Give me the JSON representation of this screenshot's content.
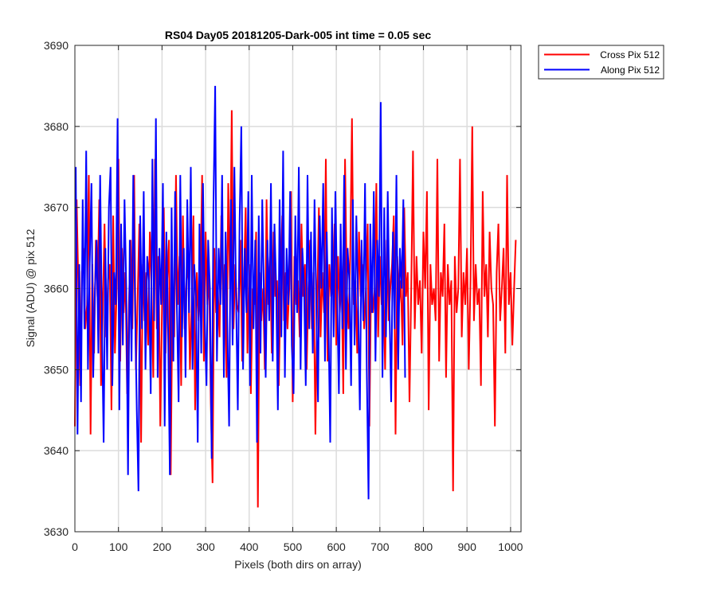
{
  "chart_data": {
    "type": "line",
    "title": "RS04 Day05 20181205-Dark-005 int time = 0.05 sec",
    "xlabel": "Pixels (both dirs on array)",
    "ylabel": "Signal (ADU) @ pix 512",
    "xlim": [
      0,
      1024
    ],
    "ylim": [
      3630,
      3690
    ],
    "xticks": [
      0,
      100,
      200,
      300,
      400,
      500,
      600,
      700,
      800,
      900,
      1000
    ],
    "yticks": [
      3630,
      3640,
      3650,
      3660,
      3670,
      3680,
      3690
    ],
    "grid": true,
    "legend_position": "outside top-right",
    "series": [
      {
        "name": "Cross Pix 512",
        "color": "#ff0000",
        "x_start": 0,
        "x_step": 4,
        "values": [
          3643,
          3671,
          3660,
          3648,
          3662,
          3665,
          3655,
          3658,
          3674,
          3642,
          3663,
          3652,
          3666,
          3659,
          3671,
          3648,
          3657,
          3668,
          3654,
          3661,
          3663,
          3645,
          3669,
          3652,
          3660,
          3676,
          3651,
          3665,
          3657,
          3662,
          3647,
          3658,
          3666,
          3655,
          3674,
          3650,
          3659,
          3668,
          3641,
          3663,
          3656,
          3662,
          3653,
          3667,
          3660,
          3649,
          3676,
          3655,
          3664,
          3643,
          3658,
          3670,
          3652,
          3661,
          3666,
          3637,
          3660,
          3654,
          3674,
          3658,
          3664,
          3648,
          3669,
          3655,
          3661,
          3663,
          3650,
          3658,
          3669,
          3645,
          3662,
          3656,
          3660,
          3674,
          3651,
          3667,
          3658,
          3662,
          3646,
          3636,
          3665,
          3657,
          3660,
          3654,
          3669,
          3658,
          3663,
          3649,
          3673,
          3660,
          3682,
          3655,
          3663,
          3658,
          3657,
          3666,
          3651,
          3661,
          3670,
          3652,
          3663,
          3647,
          3660,
          3658,
          3667,
          3633,
          3662,
          3656,
          3660,
          3650,
          3671,
          3658,
          3664,
          3652,
          3667,
          3659,
          3661,
          3648,
          3660,
          3669,
          3656,
          3662,
          3655,
          3660,
          3672,
          3646,
          3664,
          3658,
          3661,
          3654,
          3668,
          3659,
          3663,
          3650,
          3660,
          3666,
          3655,
          3662,
          3642,
          3658,
          3670,
          3654,
          3662,
          3657,
          3676,
          3651,
          3663,
          3659,
          3660,
          3668,
          3653,
          3664,
          3657,
          3662,
          3647,
          3676,
          3660,
          3655,
          3664,
          3681,
          3658,
          3661,
          3652,
          3667,
          3659,
          3663,
          3655,
          3660,
          3668,
          3643,
          3662,
          3657,
          3660,
          3673,
          3654,
          3664,
          3658,
          3661,
          3650,
          3666,
          3656,
          3660,
          3663,
          3669,
          3642,
          3664,
          3658,
          3661,
          3653,
          3670,
          3659,
          3662,
          3646,
          3660,
          3677,
          3655,
          3664,
          3658,
          3661,
          3652,
          3667,
          3660,
          3672,
          3645,
          3663,
          3658,
          3660,
          3656,
          3676,
          3651,
          3662,
          3659,
          3668,
          3649,
          3663,
          3658,
          3661,
          3635,
          3664,
          3657,
          3660,
          3676,
          3654,
          3662,
          3658,
          3665,
          3650,
          3661,
          3680,
          3656,
          3663,
          3658,
          3660,
          3648,
          3672,
          3659,
          3663,
          3654,
          3667,
          3660,
          3658,
          3643,
          3662,
          3668,
          3656,
          3660,
          3665,
          3652,
          3674,
          3658,
          3662,
          3653,
          3660,
          3666
        ]
      },
      {
        "name": "Along Pix 512",
        "color": "#0000ff",
        "x_start": 2,
        "x_step": 4,
        "values": [
          3675,
          3642,
          3663,
          3646,
          3671,
          3655,
          3677,
          3650,
          3663,
          3673,
          3649,
          3660,
          3666,
          3652,
          3674,
          3656,
          3641,
          3665,
          3650,
          3670,
          3675,
          3648,
          3662,
          3658,
          3681,
          3645,
          3668,
          3653,
          3671,
          3660,
          3637,
          3666,
          3651,
          3674,
          3658,
          3645,
          3635,
          3669,
          3655,
          3672,
          3650,
          3664,
          3661,
          3647,
          3676,
          3656,
          3681,
          3649,
          3665,
          3658,
          3673,
          3643,
          3667,
          3655,
          3637,
          3670,
          3651,
          3672,
          3658,
          3646,
          3674,
          3654,
          3665,
          3649,
          3671,
          3657,
          3675,
          3650,
          3663,
          3659,
          3641,
          3668,
          3652,
          3673,
          3656,
          3648,
          3666,
          3660,
          3639,
          3670,
          3685,
          3651,
          3665,
          3658,
          3674,
          3649,
          3667,
          3655,
          3643,
          3671,
          3653,
          3675,
          3659,
          3645,
          3668,
          3680,
          3650,
          3665,
          3657,
          3672,
          3648,
          3674,
          3655,
          3666,
          3641,
          3669,
          3652,
          3671,
          3659,
          3649,
          3666,
          3656,
          3673,
          3651,
          3668,
          3660,
          3645,
          3671,
          3654,
          3677,
          3649,
          3665,
          3658,
          3672,
          3653,
          3647,
          3669,
          3657,
          3675,
          3650,
          3665,
          3660,
          3648,
          3674,
          3655,
          3667,
          3652,
          3671,
          3658,
          3646,
          3669,
          3660,
          3673,
          3651,
          3667,
          3656,
          3641,
          3670,
          3654,
          3672,
          3659,
          3647,
          3668,
          3655,
          3674,
          3650,
          3665,
          3661,
          3648,
          3671,
          3653,
          3669,
          3658,
          3645,
          3666,
          3656,
          3673,
          3650,
          3634,
          3668,
          3657,
          3672,
          3651,
          3666,
          3659,
          3683,
          3649,
          3670,
          3654,
          3672,
          3658,
          3646,
          3667,
          3655,
          3674,
          3650,
          3665,
          3660,
          3671,
          3649
        ]
      }
    ]
  }
}
